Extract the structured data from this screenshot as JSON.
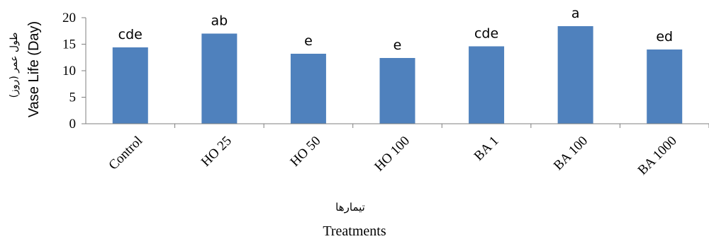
{
  "chart_data": {
    "type": "bar",
    "categories": [
      "Control",
      "HO 25",
      "HO 50",
      "HO 100",
      "BA 1",
      "BA 100",
      "BA 1000"
    ],
    "values": [
      14.4,
      17.0,
      13.2,
      12.4,
      14.6,
      18.4,
      14.0
    ],
    "data_labels": [
      "cde",
      "ab",
      "e",
      "e",
      "cde",
      "a",
      "ed"
    ],
    "ylabel_fa": "طول عمر (روز)",
    "ylabel": "Vase Life (Day)",
    "xlabel_fa": "تیمارها",
    "xlabel": "Treatments",
    "ylim": [
      0,
      20
    ],
    "yticks": [
      0,
      5,
      10,
      15,
      20
    ],
    "grid": false,
    "bar_color": "#4f81bd"
  }
}
